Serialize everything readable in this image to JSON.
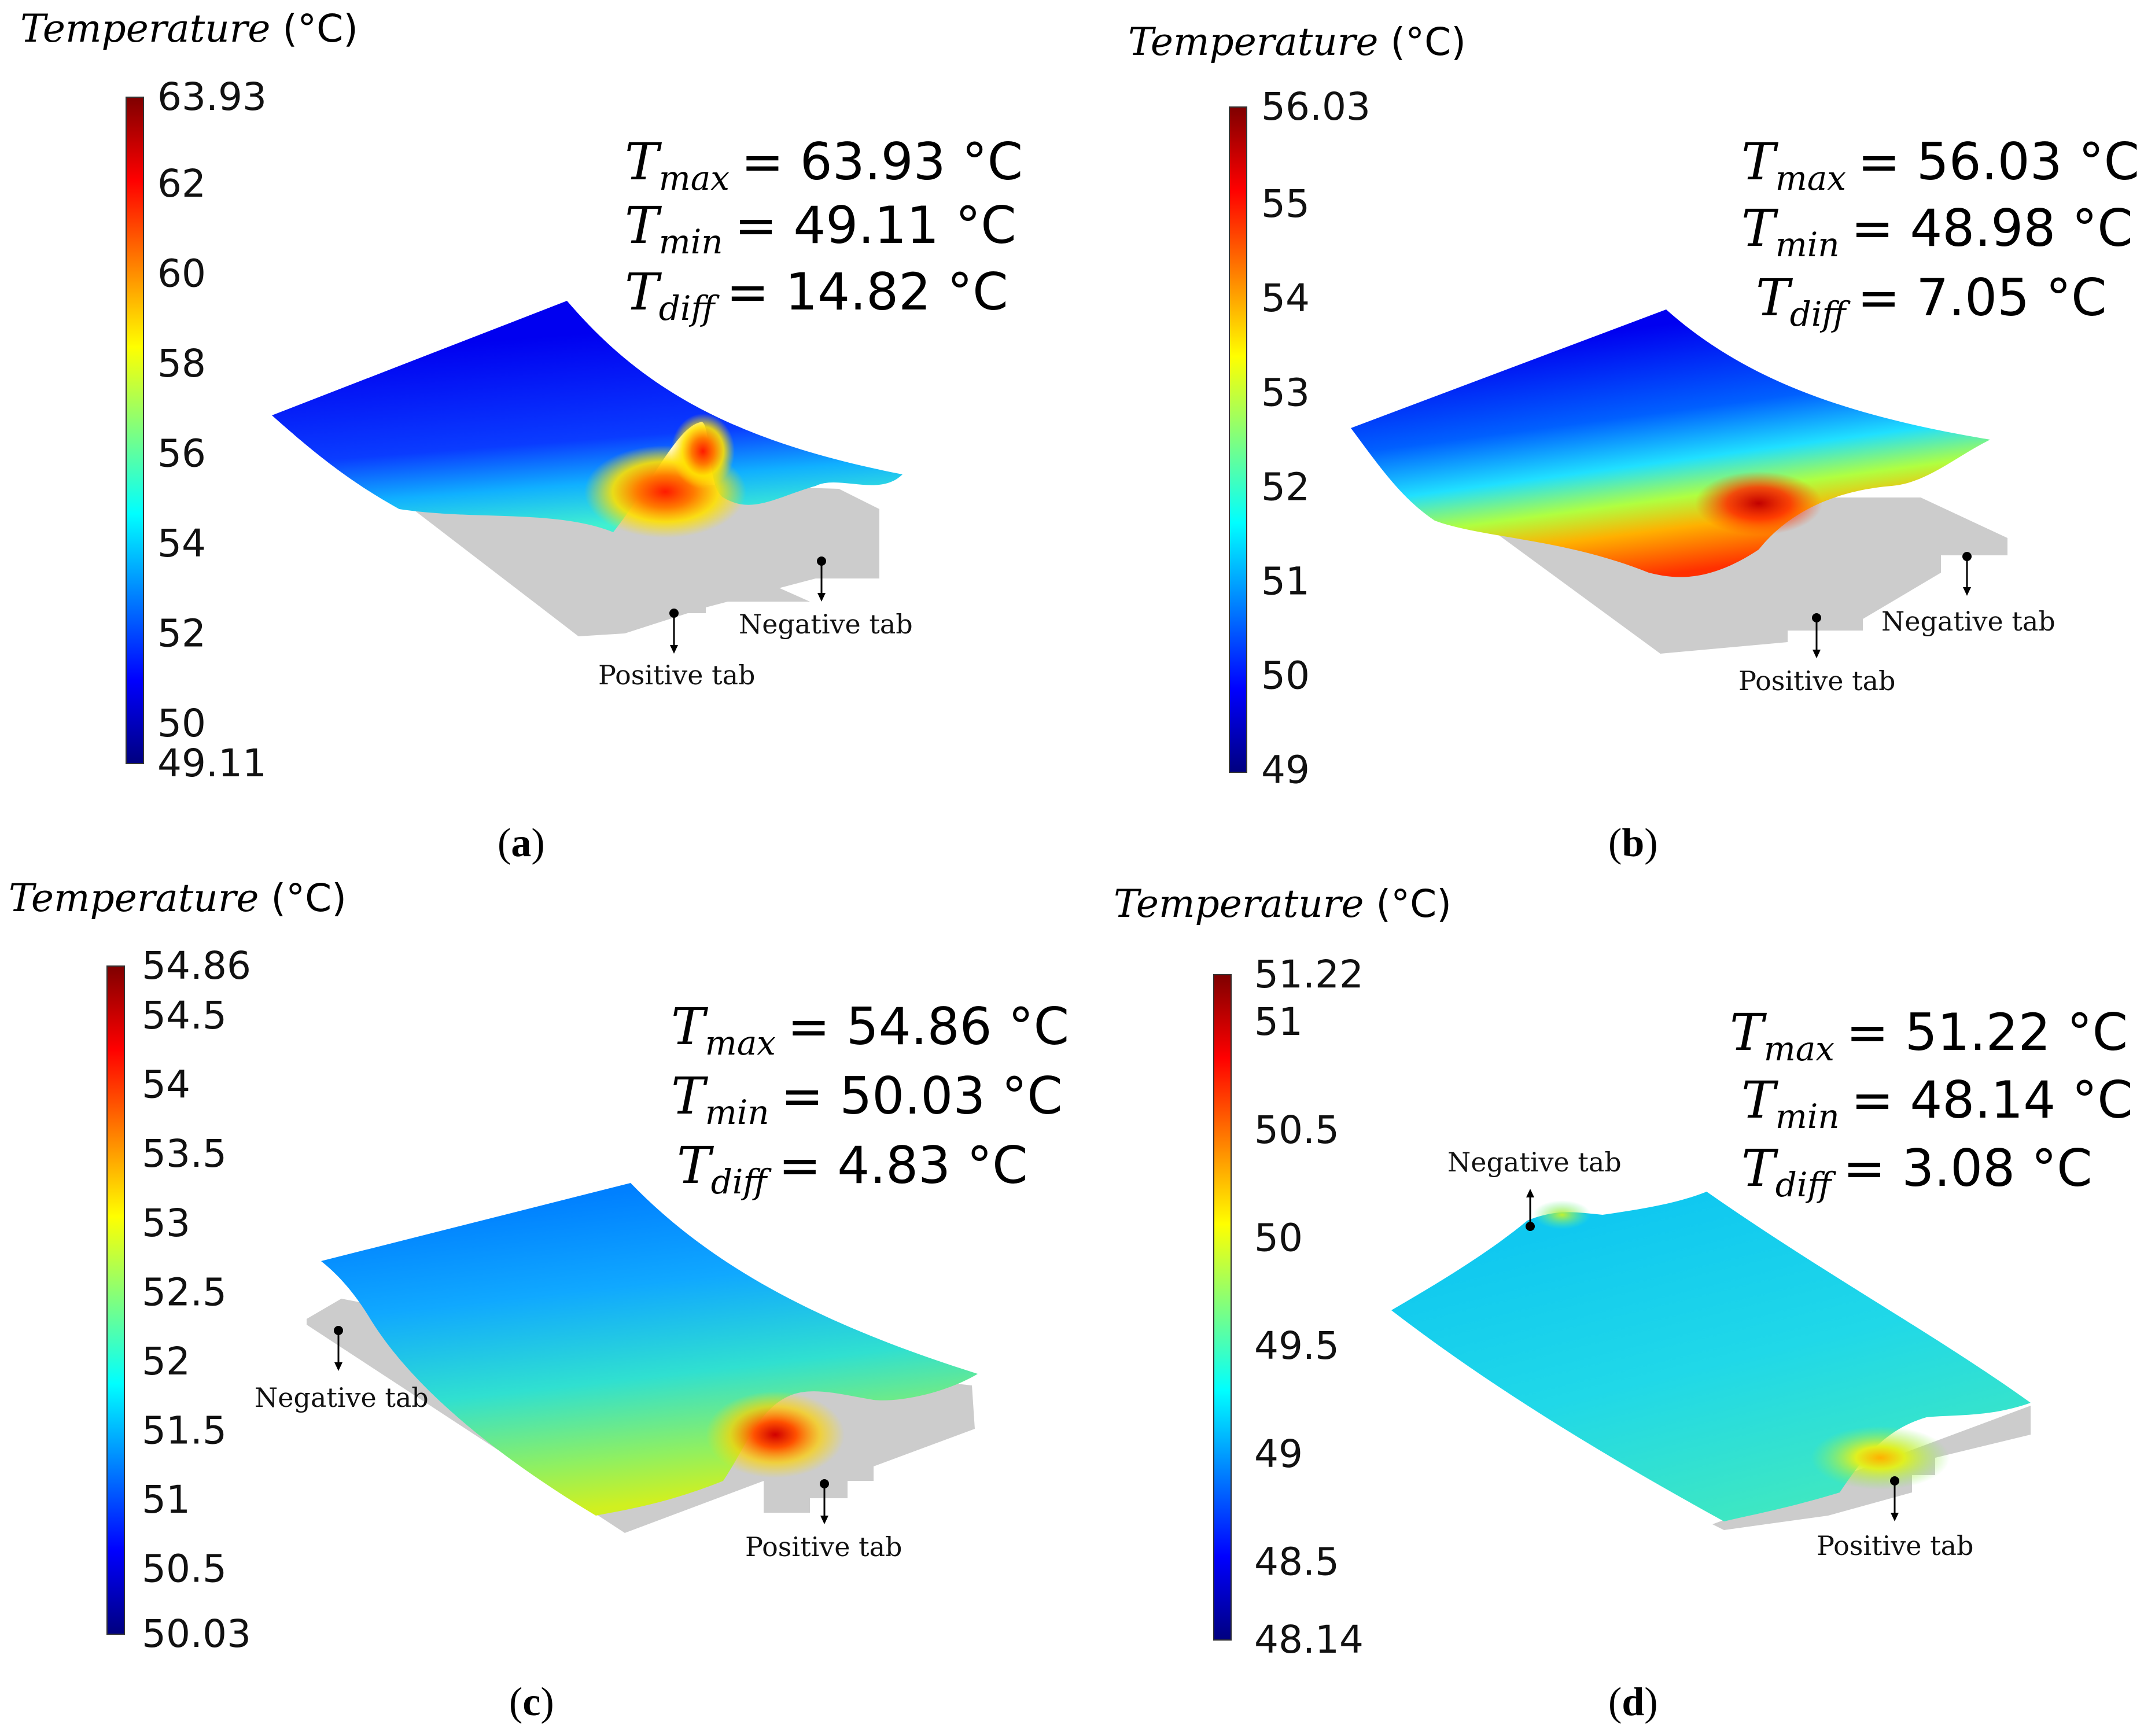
{
  "colormap": [
    "#00007f",
    "#0000ff",
    "#007fff",
    "#00ffff",
    "#7fff7f",
    "#ffff00",
    "#ff7f00",
    "#ff0000",
    "#7f0000"
  ],
  "tab_fill": "#cccccc",
  "panels": [
    {
      "id": "a",
      "caption_label": "a",
      "colorbar_title": "Temperature",
      "colorbar_unit": "(°C)",
      "colorbar_min": 49.11,
      "colorbar_max": 63.93,
      "ticks": [
        "49.11",
        "50",
        "52",
        "54",
        "56",
        "58",
        "60",
        "62",
        "63.93"
      ],
      "tick_values": [
        49.11,
        50,
        52,
        54,
        56,
        58,
        60,
        62,
        63.93
      ],
      "tmax_label": "T",
      "tmax_sub": "max",
      "tmax_value": "= 63.93 °C",
      "tmin_label": "T",
      "tmin_sub": "min",
      "tmin_value": "= 49.11 °C",
      "tdiff_label": "T",
      "tdiff_sub": "diff",
      "tdiff_value": "= 14.82 °C",
      "positive_tab": "Positive tab",
      "negative_tab": "Negative tab"
    },
    {
      "id": "b",
      "caption_label": "b",
      "colorbar_title": "Temperature",
      "colorbar_unit": "(°C)",
      "colorbar_min": 48.98,
      "colorbar_max": 56.03,
      "ticks": [
        "49",
        "50",
        "51",
        "52",
        "53",
        "54",
        "55",
        "56.03"
      ],
      "tick_values": [
        49,
        50,
        51,
        52,
        53,
        54,
        55,
        56.03
      ],
      "tmax_label": "T",
      "tmax_sub": "max",
      "tmax_value": "= 56.03 °C",
      "tmin_label": "T",
      "tmin_sub": "min",
      "tmin_value": "= 48.98 °C",
      "tdiff_label": "T",
      "tdiff_sub": "diff",
      "tdiff_value": "= 7.05 °C",
      "positive_tab": "Positive tab",
      "negative_tab": "Negative tab"
    },
    {
      "id": "c",
      "caption_label": "c",
      "colorbar_title": "Temperature",
      "colorbar_unit": "(°C)",
      "colorbar_min": 50.03,
      "colorbar_max": 54.86,
      "ticks": [
        "50.03",
        "50.5",
        "51",
        "51.5",
        "52",
        "52.5",
        "53",
        "53.5",
        "54",
        "54.5",
        "54.86"
      ],
      "tick_values": [
        50.03,
        50.5,
        51,
        51.5,
        52,
        52.5,
        53,
        53.5,
        54,
        54.5,
        54.86
      ],
      "tmax_label": "T",
      "tmax_sub": "max",
      "tmax_value": "= 54.86 °C",
      "tmin_label": "T",
      "tmin_sub": "min",
      "tmin_value": "= 50.03 °C",
      "tdiff_label": "T",
      "tdiff_sub": "diff",
      "tdiff_value": "=  4.83 °C",
      "positive_tab": "Positive tab",
      "negative_tab": "Negative tab"
    },
    {
      "id": "d",
      "caption_label": "d",
      "colorbar_title": "Temperature",
      "colorbar_unit": "(°C)",
      "colorbar_min": 48.14,
      "colorbar_max": 51.22,
      "ticks": [
        "48.14",
        "48.5",
        "49",
        "49.5",
        "50",
        "50.5",
        "51",
        "51.22"
      ],
      "tick_values": [
        48.14,
        48.5,
        49,
        49.5,
        50,
        50.5,
        51,
        51.22
      ],
      "tmax_label": "T",
      "tmax_sub": "max",
      "tmax_value": "= 51.22 °C",
      "tmin_label": "T",
      "tmin_sub": "min",
      "tmin_value": "= 48.14 °C",
      "tdiff_label": "T",
      "tdiff_sub": "diff",
      "tdiff_value": "=  3.08 °C",
      "positive_tab": "Positive tab",
      "negative_tab": "Negative tab"
    }
  ]
}
